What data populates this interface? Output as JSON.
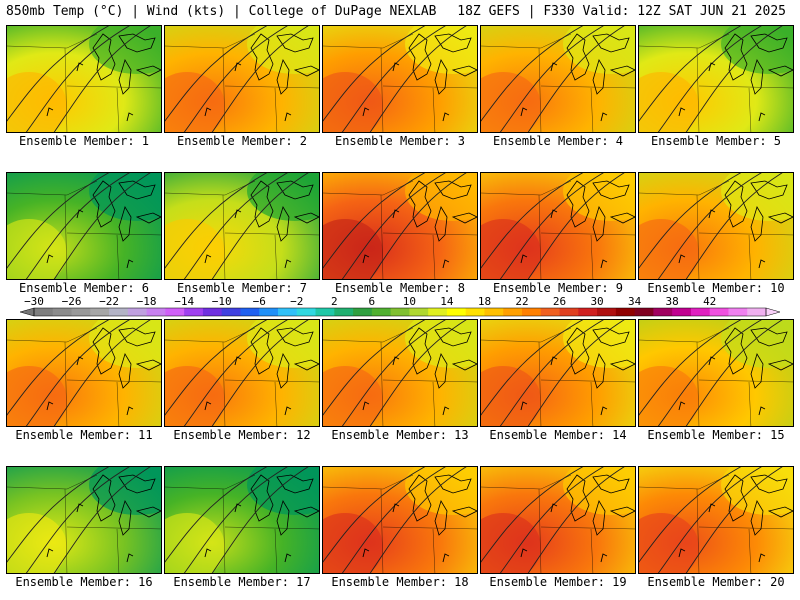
{
  "header": {
    "left": "850mb Temp (°C) | Wind (kts) | College of DuPage NEXLAB",
    "right": "18Z GEFS | F330 Valid: 12Z SAT JUN 21 2025"
  },
  "colorbar": {
    "labels": [
      "−30",
      "−26",
      "−22",
      "−18",
      "−14",
      "−10",
      "−6",
      "−2",
      "2",
      "6",
      "10",
      "14",
      "18",
      "22",
      "26",
      "30",
      "34",
      "38",
      "42"
    ],
    "colors": [
      "#7f7f7f",
      "#8c8c8c",
      "#999999",
      "#a6a6a6",
      "#b3b3c6",
      "#c0a0e0",
      "#c880f0",
      "#d060f8",
      "#a040f0",
      "#7030e0",
      "#4040e0",
      "#2060f0",
      "#2090f8",
      "#30c0f8",
      "#30d8e0",
      "#20c8a8",
      "#20b070",
      "#30a040",
      "#50b030",
      "#80c030",
      "#b0d830",
      "#e0f020",
      "#ffff00",
      "#ffe000",
      "#ffc000",
      "#ffa000",
      "#ff8000",
      "#f06020",
      "#e04020",
      "#d02020",
      "#b01010",
      "#900000",
      "#800020",
      "#a00060",
      "#c00090",
      "#e020c0",
      "#f050e0",
      "#f080f0",
      "#f0b0f0"
    ]
  },
  "members": [
    {
      "label": "Ensemble Member: 1",
      "warmth": 0.35
    },
    {
      "label": "Ensemble Member: 2",
      "warmth": 0.55
    },
    {
      "label": "Ensemble Member: 3",
      "warmth": 0.6
    },
    {
      "label": "Ensemble Member: 4",
      "warmth": 0.55
    },
    {
      "label": "Ensemble Member: 5",
      "warmth": 0.35
    },
    {
      "label": "Ensemble Member: 6",
      "warmth": 0.15
    },
    {
      "label": "Ensemble Member: 7",
      "warmth": 0.3
    },
    {
      "label": "Ensemble Member: 8",
      "warmth": 0.75
    },
    {
      "label": "Ensemble Member: 9",
      "warmth": 0.7
    },
    {
      "label": "Ensemble Member: 10",
      "warmth": 0.55
    },
    {
      "label": "Ensemble Member: 11",
      "warmth": 0.55
    },
    {
      "label": "Ensemble Member: 12",
      "warmth": 0.55
    },
    {
      "label": "Ensemble Member: 13",
      "warmth": 0.55
    },
    {
      "label": "Ensemble Member: 14",
      "warmth": 0.6
    },
    {
      "label": "Ensemble Member: 15",
      "warmth": 0.5
    },
    {
      "label": "Ensemble Member: 16",
      "warmth": 0.2
    },
    {
      "label": "Ensemble Member: 17",
      "warmth": 0.15
    },
    {
      "label": "Ensemble Member: 18",
      "warmth": 0.7
    },
    {
      "label": "Ensemble Member: 19",
      "warmth": 0.7
    },
    {
      "label": "Ensemble Member: 20",
      "warmth": 0.65
    }
  ]
}
